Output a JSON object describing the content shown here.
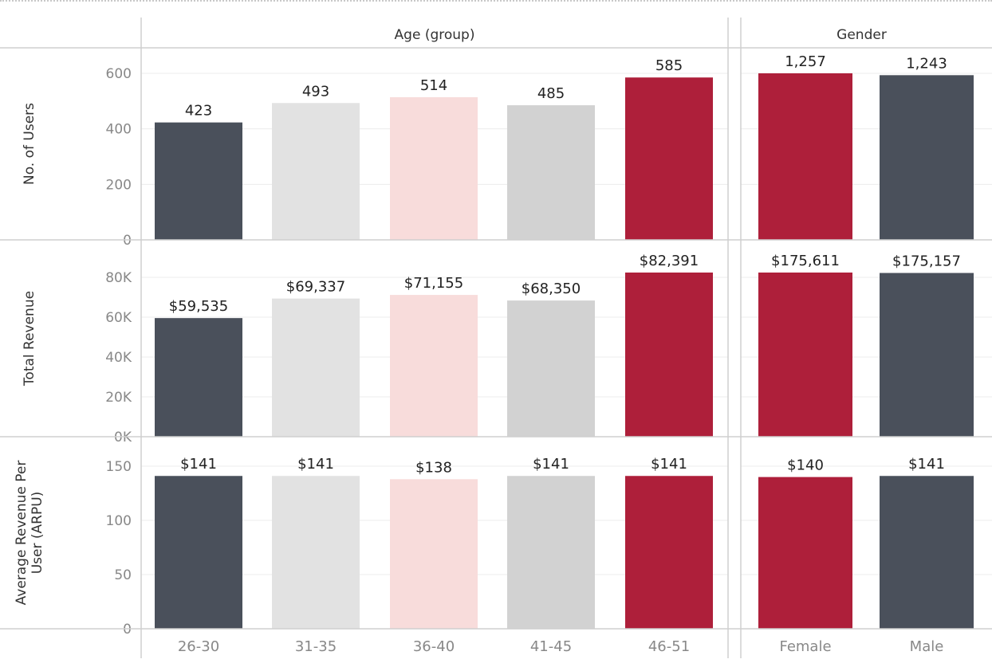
{
  "headers": {
    "age": "Age (group)",
    "gender": "Gender"
  },
  "colors": {
    "dark": "#4a505b",
    "light_gray": "#e2e2e2",
    "pink": "#f8dcdb",
    "mid_gray": "#d2d2d2",
    "red": "#ae1f3a",
    "axis_text": "#888888",
    "value_text": "#222222",
    "grid": "#ececec",
    "rule": "#cfcfcf"
  },
  "chart_data": [
    {
      "type": "bar",
      "panel": "age",
      "categories": [
        "26-30",
        "31-35",
        "36-40",
        "41-45",
        "46-51"
      ],
      "bar_colors": [
        "dark",
        "light_gray",
        "pink",
        "mid_gray",
        "red"
      ],
      "rows": [
        {
          "ylabel": "No. of Users",
          "values": [
            423,
            493,
            514,
            485,
            585
          ],
          "labels": [
            "423",
            "493",
            "514",
            "485",
            "585"
          ],
          "ylim": [
            0,
            600
          ],
          "ticks": [
            0,
            200,
            400,
            600
          ],
          "tick_labels": [
            "0",
            "200",
            "400",
            "600"
          ]
        },
        {
          "ylabel": "Total Revenue",
          "values": [
            59535,
            69337,
            71155,
            68350,
            82391
          ],
          "labels": [
            "$59,535",
            "$69,337",
            "$71,155",
            "$68,350",
            "$82,391"
          ],
          "ylim": [
            0,
            82391
          ],
          "ticks": [
            0,
            20000,
            40000,
            60000,
            80000
          ],
          "tick_labels": [
            "0K",
            "20K",
            "40K",
            "60K",
            "80K"
          ]
        },
        {
          "ylabel": "Average Revenue Per User (ARPU)",
          "ylabel_lines": [
            "Average Revenue Per",
            "User (ARPU)"
          ],
          "values": [
            141,
            141,
            138,
            141,
            141
          ],
          "labels": [
            "$141",
            "$141",
            "$138",
            "$141",
            "$141"
          ],
          "ylim": [
            0,
            150
          ],
          "ticks": [
            0,
            50,
            100,
            150
          ],
          "tick_labels": [
            "0",
            "50",
            "100",
            "150"
          ]
        }
      ]
    },
    {
      "type": "bar",
      "panel": "gender",
      "categories": [
        "Female",
        "Male"
      ],
      "bar_colors": [
        "red",
        "dark"
      ],
      "rows": [
        {
          "ylabel": "No. of Users",
          "values": [
            1257,
            1243
          ],
          "labels": [
            "1,257",
            "1,243"
          ],
          "ylim": [
            0,
            1257
          ],
          "ticks": []
        },
        {
          "ylabel": "Total Revenue",
          "values": [
            175611,
            175157
          ],
          "labels": [
            "$175,611",
            "$175,157"
          ],
          "ylim": [
            0,
            175611
          ],
          "ticks": []
        },
        {
          "ylabel": "Average Revenue Per User (ARPU)",
          "values": [
            140,
            141
          ],
          "labels": [
            "$140",
            "$141"
          ],
          "ylim": [
            0,
            150
          ],
          "ticks": []
        }
      ]
    }
  ]
}
